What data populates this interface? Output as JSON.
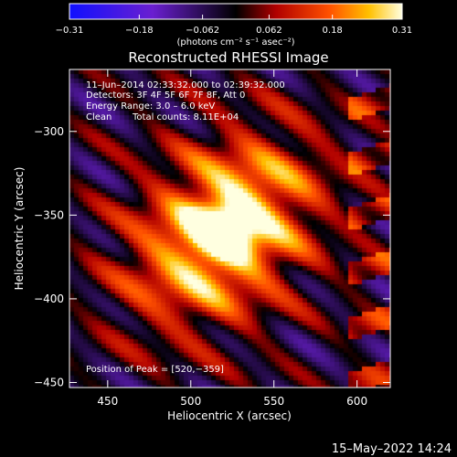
{
  "chart_data": {
    "type": "heatmap",
    "title": "Reconstructed RHESSI Image",
    "xlabel": "Heliocentric X (arcsec)",
    "ylabel": "Heliocentric Y (arcsec)",
    "xlim": [
      427,
      620
    ],
    "ylim": [
      -453,
      -263
    ],
    "x_ticks": [
      450,
      500,
      550,
      600
    ],
    "y_ticks": [
      -300,
      -350,
      -400,
      -450
    ],
    "x_tick_labels": [
      "450",
      "500",
      "550",
      "600"
    ],
    "y_tick_labels": [
      "−300",
      "−350",
      "−400",
      "−450"
    ],
    "colorbar": {
      "range": [
        -0.31,
        0.31
      ],
      "tick_values": [
        -0.31,
        -0.18,
        -0.062,
        0.062,
        0.18,
        0.31
      ],
      "tick_labels": [
        "−0.31",
        "−0.18",
        "−0.062",
        "0.062",
        "0.18",
        "0.31"
      ],
      "label": "(photons cm⁻² s⁻¹ asec⁻²)"
    },
    "annotations": {
      "time_range": "11–Jun–2014 02:33:32.000 to 02:39:32.000",
      "detectors": "Detectors: 3F 4F 5F 6F 7F 8F, Att 0",
      "energy_range": "Energy Range: 3.0 – 6.0 keV",
      "algorithm": "Clean",
      "total_counts": "Total counts: 8.11E+04",
      "peak": "Position of Peak = [520,−359]"
    },
    "peak": {
      "x": 520,
      "y": -359,
      "value": 0.31
    },
    "footer_date": "15–May–2022 14:24"
  }
}
